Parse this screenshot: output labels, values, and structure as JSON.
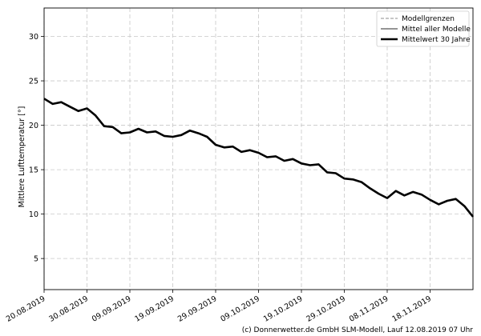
{
  "chart_data": {
    "type": "line",
    "ylabel": "Mittlere Lufttemperatur [°]",
    "ylim": [
      1.5,
      33.2
    ],
    "yticks": [
      5,
      10,
      15,
      20,
      25,
      30
    ],
    "x_start": "2019-08-20",
    "x_end": "2019-11-28",
    "xticks": [
      "20.08.2019",
      "30.08.2019",
      "09.09.2019",
      "19.09.2019",
      "29.09.2019",
      "09.10.2019",
      "19.10.2019",
      "29.10.2019",
      "08.11.2019",
      "18.11.2019"
    ],
    "grid": true,
    "legend_position": "top-right",
    "legend": {
      "bounds": "Modellgrenzen",
      "mean": "Mittel aller Modelle",
      "climate": "Mittelwert 30 Jahre"
    },
    "colors": {
      "band_fill": "#e4e4e4",
      "bound_line": "#8c8c8c",
      "warm_fill": "#eeb4a5",
      "cold_fill": "#a6c9e2",
      "mean_line": "#555555",
      "climate_line": "#000000",
      "grid": "#c8c8c8"
    },
    "series": [
      {
        "name": "Mittelwert 30 Jahre",
        "points": [
          [
            "2019-08-20",
            23.0
          ],
          [
            "2019-08-22",
            22.4
          ],
          [
            "2019-08-24",
            22.6
          ],
          [
            "2019-08-26",
            22.1
          ],
          [
            "2019-08-28",
            21.6
          ],
          [
            "2019-08-30",
            21.9
          ],
          [
            "2019-09-01",
            21.1
          ],
          [
            "2019-09-03",
            19.9
          ],
          [
            "2019-09-05",
            19.8
          ],
          [
            "2019-09-07",
            19.1
          ],
          [
            "2019-09-09",
            19.2
          ],
          [
            "2019-09-11",
            19.6
          ],
          [
            "2019-09-13",
            19.2
          ],
          [
            "2019-09-15",
            19.3
          ],
          [
            "2019-09-17",
            18.8
          ],
          [
            "2019-09-19",
            18.7
          ],
          [
            "2019-09-21",
            18.9
          ],
          [
            "2019-09-23",
            19.4
          ],
          [
            "2019-09-25",
            19.1
          ],
          [
            "2019-09-27",
            18.7
          ],
          [
            "2019-09-29",
            17.8
          ],
          [
            "2019-10-01",
            17.5
          ],
          [
            "2019-10-03",
            17.6
          ],
          [
            "2019-10-05",
            17.0
          ],
          [
            "2019-10-07",
            17.2
          ],
          [
            "2019-10-09",
            16.9
          ],
          [
            "2019-10-11",
            16.4
          ],
          [
            "2019-10-13",
            16.5
          ],
          [
            "2019-10-15",
            16.0
          ],
          [
            "2019-10-17",
            16.2
          ],
          [
            "2019-10-19",
            15.7
          ],
          [
            "2019-10-21",
            15.5
          ],
          [
            "2019-10-23",
            15.6
          ],
          [
            "2019-10-25",
            14.7
          ],
          [
            "2019-10-27",
            14.6
          ],
          [
            "2019-10-29",
            14.0
          ],
          [
            "2019-10-31",
            13.9
          ],
          [
            "2019-11-02",
            13.6
          ],
          [
            "2019-11-04",
            12.9
          ],
          [
            "2019-11-06",
            12.3
          ],
          [
            "2019-11-08",
            11.8
          ],
          [
            "2019-11-10",
            12.6
          ],
          [
            "2019-11-12",
            12.1
          ],
          [
            "2019-11-14",
            12.5
          ],
          [
            "2019-11-16",
            12.2
          ],
          [
            "2019-11-18",
            11.6
          ],
          [
            "2019-11-20",
            11.1
          ],
          [
            "2019-11-22",
            11.5
          ],
          [
            "2019-11-24",
            11.7
          ],
          [
            "2019-11-26",
            10.9
          ],
          [
            "2019-11-28",
            9.7
          ]
        ]
      }
    ]
  },
  "credit": "(c) Donnerwetter.de GmbH SLM-Modell, Lauf 12.08.2019 07 Uhr"
}
